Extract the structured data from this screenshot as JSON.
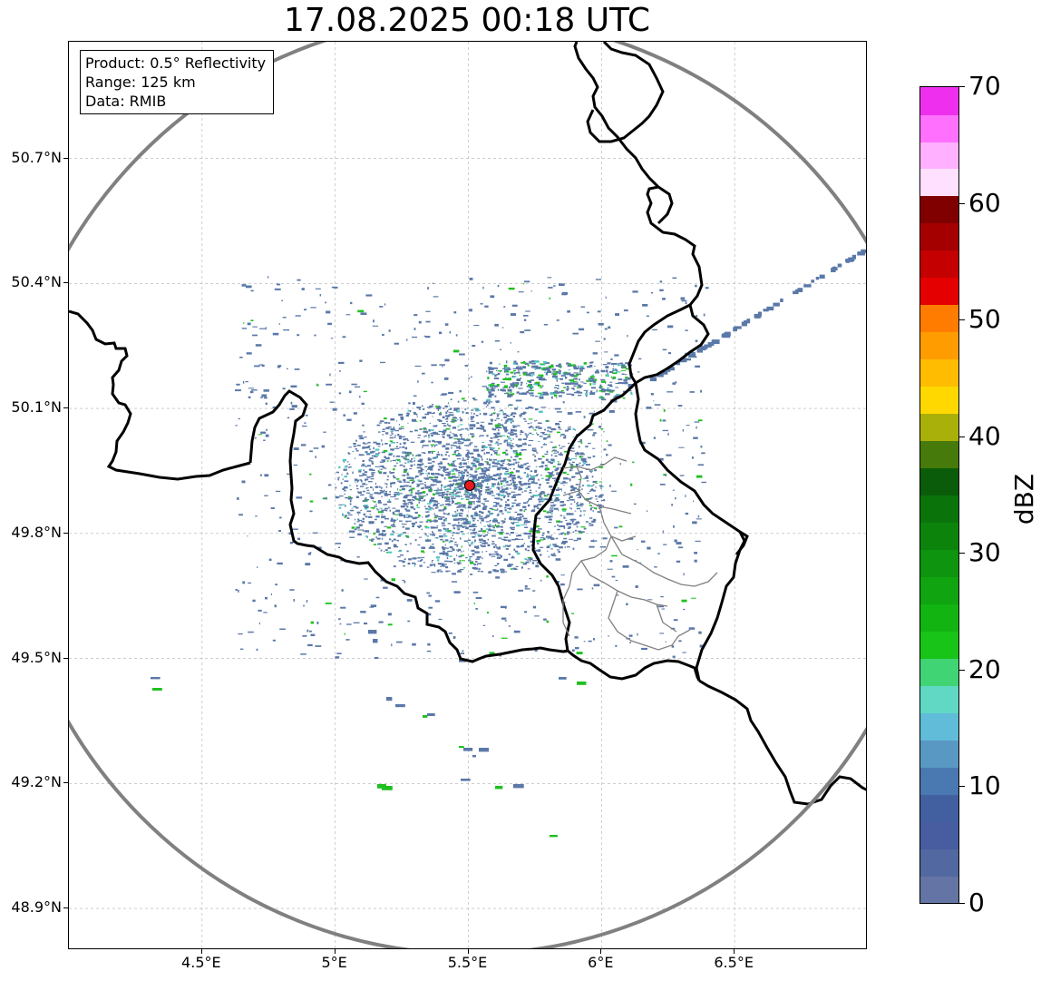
{
  "title": "17.08.2025 00:18 UTC",
  "info_box": {
    "product": "Product: 0.5° Reflectivity",
    "range": "Range: 125 km",
    "data": "Data: RMIB"
  },
  "map_extent": {
    "lon_min": 4.0,
    "lon_max": 7.0,
    "lat_min": 48.8,
    "lat_max": 50.98
  },
  "radar_site": {
    "lon": 5.505,
    "lat": 49.915,
    "marker_color": "#e41a1c"
  },
  "range_ring_km": 125,
  "axes": {
    "lat_ticks": [
      {
        "value": 50.7,
        "label": "50.7°N"
      },
      {
        "value": 50.4,
        "label": "50.4°N"
      },
      {
        "value": 50.1,
        "label": "50.1°N"
      },
      {
        "value": 49.8,
        "label": "49.8°N"
      },
      {
        "value": 49.5,
        "label": "49.5°N"
      },
      {
        "value": 49.2,
        "label": "49.2°N"
      },
      {
        "value": 48.9,
        "label": "48.9°N"
      }
    ],
    "lon_ticks": [
      {
        "value": 4.5,
        "label": "4.5°E"
      },
      {
        "value": 5.0,
        "label": "5°E"
      },
      {
        "value": 5.5,
        "label": "5.5°E"
      },
      {
        "value": 6.0,
        "label": "6°E"
      },
      {
        "value": 6.5,
        "label": "6.5°E"
      }
    ],
    "grid": true
  },
  "colorbar": {
    "label": "dBZ",
    "vmin": 0,
    "vmax": 70,
    "ticks": [
      "0",
      "10",
      "20",
      "30",
      "40",
      "50",
      "60",
      "70"
    ],
    "tick_values": [
      0,
      10,
      20,
      30,
      40,
      50,
      60,
      70
    ],
    "colors": [
      "#6474a4",
      "#5268a0",
      "#485da0",
      "#4260a0",
      "#4a78b0",
      "#5a98c4",
      "#60bcd8",
      "#60d8c4",
      "#40d474",
      "#18c418",
      "#12b412",
      "#10a410",
      "#0e940e",
      "#0c840c",
      "#0a740a",
      "#0a5c0a",
      "#467a0a",
      "#aab00a",
      "#ffd800",
      "#ffbc00",
      "#ff9c00",
      "#ff7c00",
      "#e40000",
      "#c40000",
      "#a40000",
      "#800000",
      "#ffe0ff",
      "#ffb0ff",
      "#ff70ff",
      "#ee30ee"
    ]
  },
  "colors": {
    "border_main": "#000000",
    "border_internal": "#808080",
    "range_ring": "#808080",
    "echo_weak": "#5a78a8",
    "echo_light": "#50c8c0",
    "echo_moderate": "#20c020"
  }
}
